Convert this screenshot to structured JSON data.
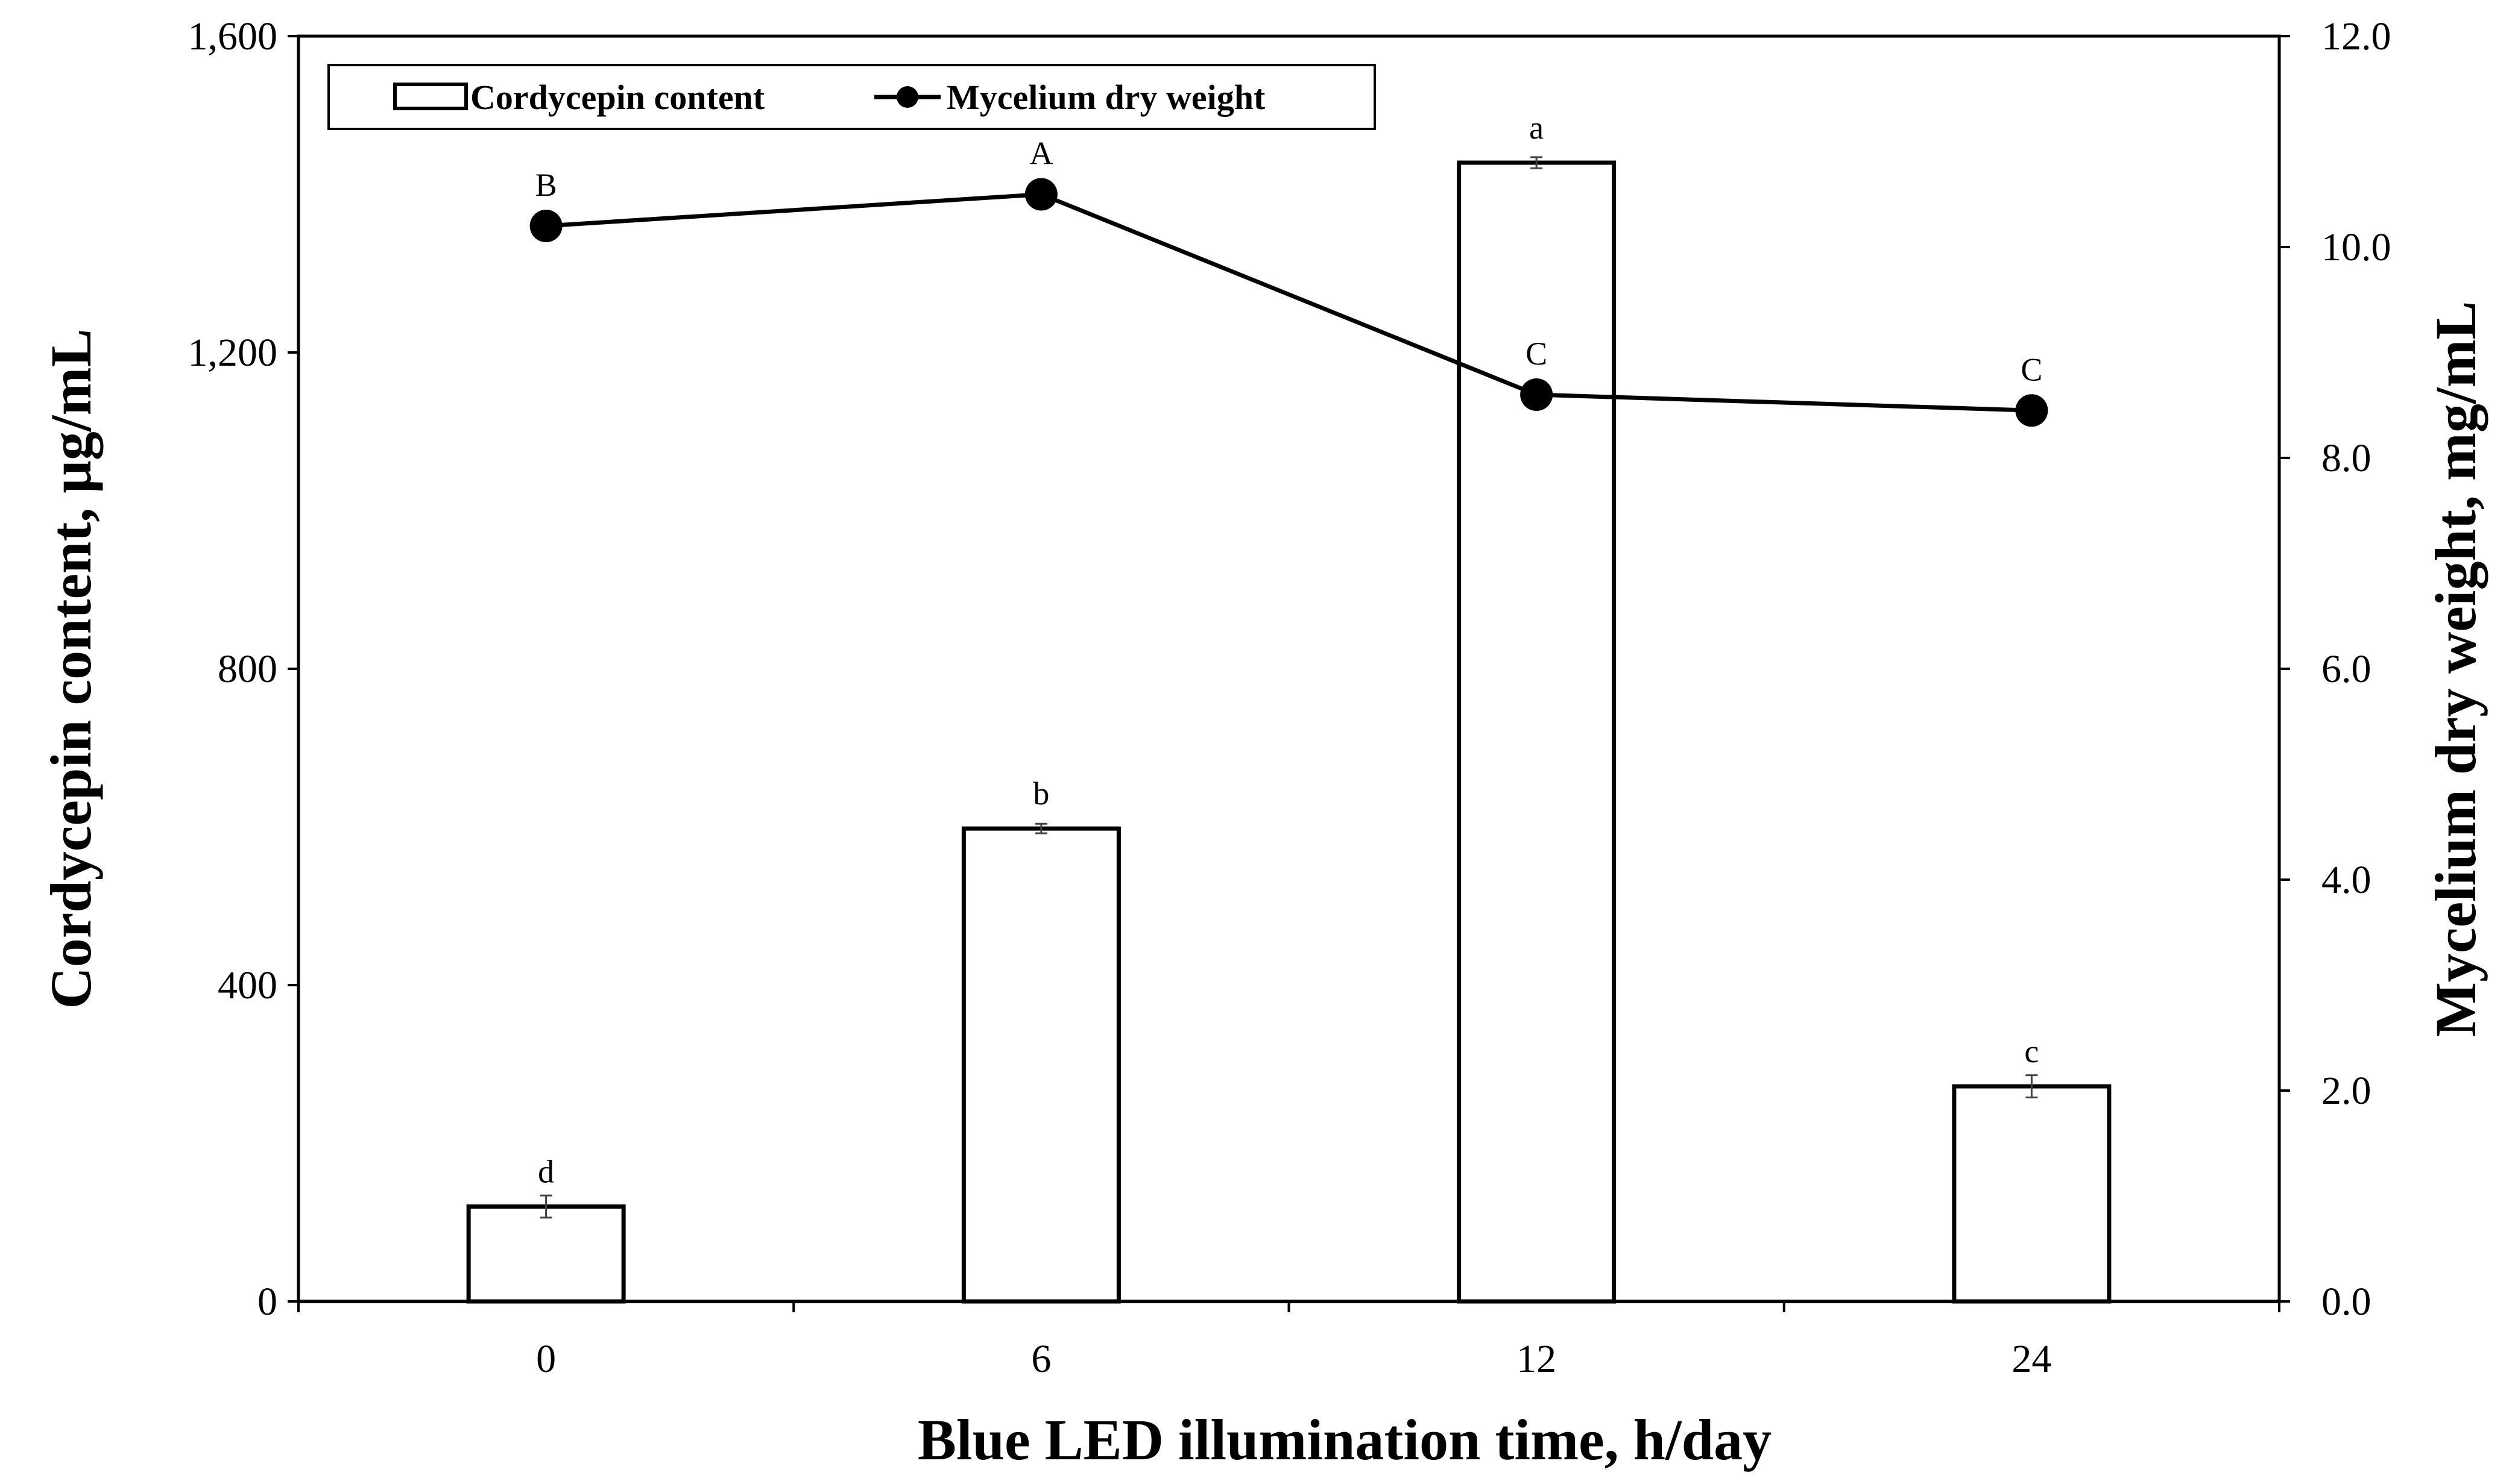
{
  "chart_data": {
    "type": "bar",
    "categories": [
      "0",
      "6",
      "12",
      "24"
    ],
    "xlabel": "Blue LED illumination time, h/day",
    "ylabel": "Cordycepin content, μg/mL",
    "y2label": "Mycelium dry weight, mg/mL",
    "ylim": [
      0,
      1600
    ],
    "y2lim": [
      0,
      12
    ],
    "yticks": [
      "0",
      "400",
      "800",
      "1,200",
      "1,600"
    ],
    "y2ticks": [
      "0.0",
      "2.0",
      "4.0",
      "6.0",
      "8.0",
      "10.0",
      "12.0"
    ],
    "grid": false,
    "legend_position": "top-left",
    "series": [
      {
        "name": "Cordycepin content",
        "type": "bar",
        "axis": "left",
        "values": [
          120,
          598,
          1440,
          272
        ],
        "errors": [
          14,
          6,
          7,
          14
        ],
        "labels": [
          "d",
          "b",
          "a",
          "c"
        ]
      },
      {
        "name": "Mycelium dry weight",
        "type": "line",
        "axis": "right",
        "values": [
          10.2,
          10.5,
          8.6,
          8.45
        ],
        "errors": [
          0.08,
          0.08,
          0.12,
          0.1
        ],
        "labels": [
          "B",
          "A",
          "C",
          "C"
        ]
      }
    ]
  }
}
